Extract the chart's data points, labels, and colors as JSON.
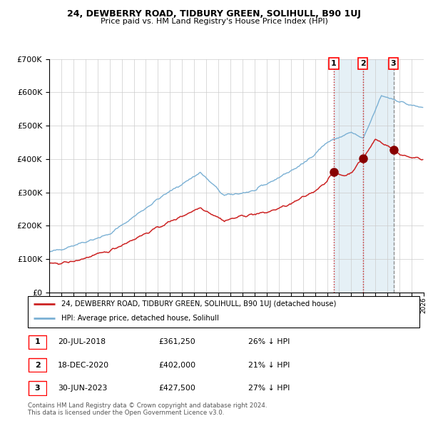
{
  "title": "24, DEWBERRY ROAD, TIDBURY GREEN, SOLIHULL, B90 1UJ",
  "subtitle": "Price paid vs. HM Land Registry's House Price Index (HPI)",
  "ylim": [
    0,
    700000
  ],
  "yticks": [
    0,
    100000,
    200000,
    300000,
    400000,
    500000,
    600000,
    700000
  ],
  "ytick_labels": [
    "£0",
    "£100K",
    "£200K",
    "£300K",
    "£400K",
    "£500K",
    "£600K",
    "£700K"
  ],
  "hpi_color": "#7ab0d4",
  "price_color": "#cc2222",
  "marker_color": "#880000",
  "vline_color": "#cc2222",
  "shade_color": "#d0e4f0",
  "shade_alpha": 0.55,
  "dashed_vline_color": "#888888",
  "transactions": [
    {
      "date": "2018-07-20",
      "price": 361250,
      "label": "1"
    },
    {
      "date": "2020-12-18",
      "price": 402000,
      "label": "2"
    },
    {
      "date": "2023-06-30",
      "price": 427500,
      "label": "3"
    }
  ],
  "legend_entries": [
    {
      "label": "24, DEWBERRY ROAD, TIDBURY GREEN, SOLIHULL, B90 1UJ (detached house)",
      "color": "#cc2222"
    },
    {
      "label": "HPI: Average price, detached house, Solihull",
      "color": "#7ab0d4"
    }
  ],
  "table_rows": [
    {
      "num": "1",
      "date": "20-JUL-2018",
      "price": "£361,250",
      "change": "26% ↓ HPI"
    },
    {
      "num": "2",
      "date": "18-DEC-2020",
      "price": "£402,000",
      "change": "21% ↓ HPI"
    },
    {
      "num": "3",
      "date": "30-JUN-2023",
      "price": "£427,500",
      "change": "27% ↓ HPI"
    }
  ],
  "footnote": "Contains HM Land Registry data © Crown copyright and database right 2024.\nThis data is licensed under the Open Government Licence v3.0.",
  "x_start_year": 1995,
  "x_end_year": 2026
}
